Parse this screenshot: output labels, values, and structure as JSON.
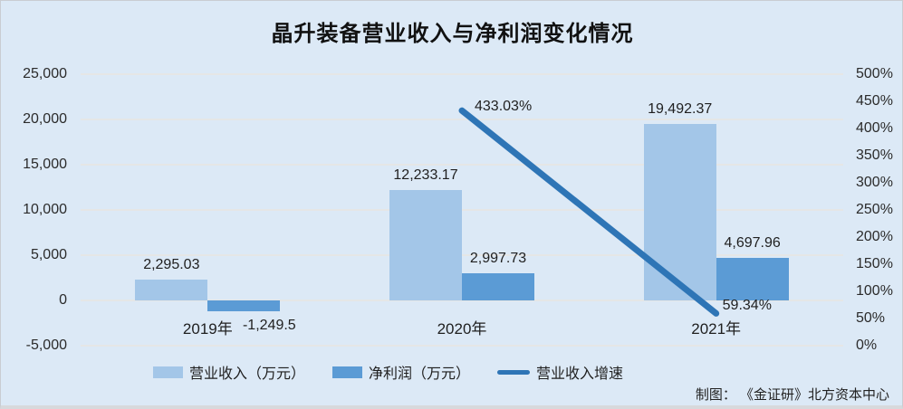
{
  "title": "晶升装备营业收入与净利润变化情况",
  "source_note": "制图：  《金证研》北方资本中心",
  "colors": {
    "background": "#dce9f6",
    "revenue_bar": "#a3c6e8",
    "profit_bar": "#5b9bd5",
    "growth_line": "#2e75b6",
    "gridline": "#e5e6e6",
    "text": "#1f1f1f"
  },
  "chart_data": {
    "type": "bar",
    "subtype": "bar-line-combo",
    "title": "晶升装备营业收入与净利润变化情况",
    "categories": [
      "2019年",
      "2020年",
      "2021年"
    ],
    "series": [
      {
        "name": "营业收入（万元）",
        "type": "bar",
        "axis": "left",
        "values": [
          2295.03,
          12233.17,
          19492.37
        ],
        "labels": [
          "2,295.03",
          "12,233.17",
          "19,492.37"
        ]
      },
      {
        "name": "净利润（万元）",
        "type": "bar",
        "axis": "left",
        "values": [
          -1249.5,
          2997.73,
          4697.96
        ],
        "labels": [
          "-1,249.5",
          "2,997.73",
          "4,697.96"
        ]
      },
      {
        "name": "营业收入增速",
        "type": "line",
        "axis": "right",
        "values": [
          null,
          433.03,
          59.34
        ],
        "labels": [
          "",
          "433.03%",
          "59.34%"
        ]
      }
    ],
    "left_axis": {
      "min": -5000,
      "max": 25000,
      "step": 5000,
      "ticks": [
        "25,000",
        "20,000",
        "15,000",
        "10,000",
        "5,000",
        "0",
        "-5,000"
      ]
    },
    "right_axis": {
      "min": 0,
      "max": 500,
      "step": 50,
      "ticks": [
        "500%",
        "450%",
        "400%",
        "350%",
        "300%",
        "250%",
        "200%",
        "150%",
        "100%",
        "50%",
        "0%"
      ]
    },
    "grid": true,
    "legend_position": "bottom"
  },
  "legend": {
    "items": [
      {
        "label": "营业收入（万元）",
        "swatch": "revenue-bar"
      },
      {
        "label": "净利润（万元）",
        "swatch": "profit-bar"
      },
      {
        "label": "营业收入增速",
        "swatch": "growth-line"
      }
    ]
  }
}
